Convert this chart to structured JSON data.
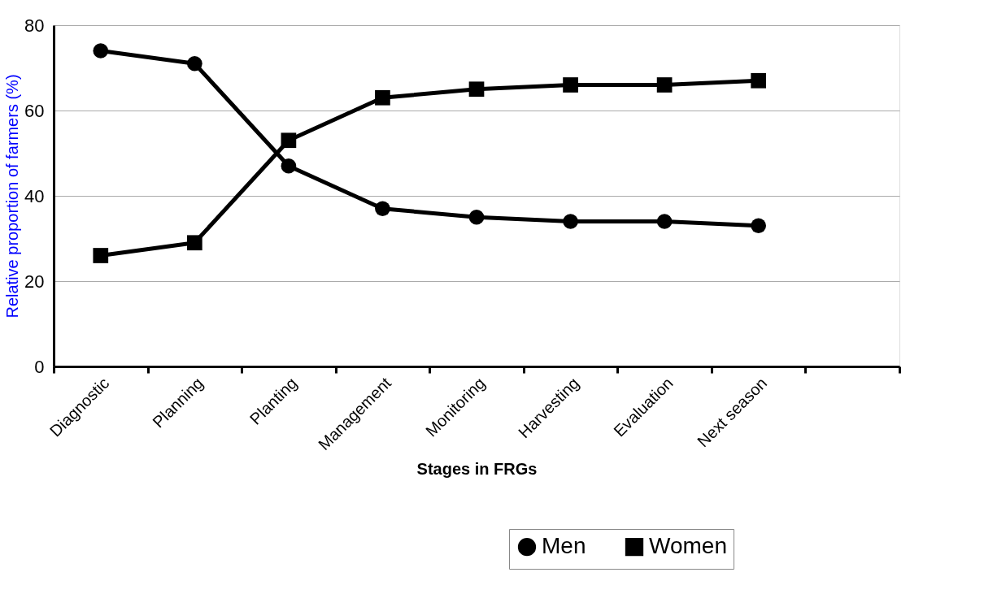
{
  "chart_data": {
    "type": "line",
    "xlabel": "Stages in FRGs",
    "ylabel": "Relative proportion of farmers (%)",
    "categories": [
      "Diagnostic",
      "Planning",
      "Planting",
      "Management",
      "Monitoring",
      "Harvesting",
      "Evaluation",
      "Next season",
      null
    ],
    "series": [
      {
        "name": "Men",
        "color": "#000000",
        "marker": "circle",
        "values": [
          74,
          71,
          47,
          37,
          35,
          34,
          34,
          33,
          null
        ]
      },
      {
        "name": "Women",
        "color": "#000000",
        "marker": "square",
        "values": [
          26,
          29,
          53,
          63,
          65,
          66,
          66,
          67,
          null
        ]
      }
    ],
    "ylim": [
      0,
      80
    ],
    "yticks": [
      0,
      20,
      40,
      60,
      80
    ],
    "grid": "y",
    "legend": "bottom",
    "line_style": "solid"
  }
}
